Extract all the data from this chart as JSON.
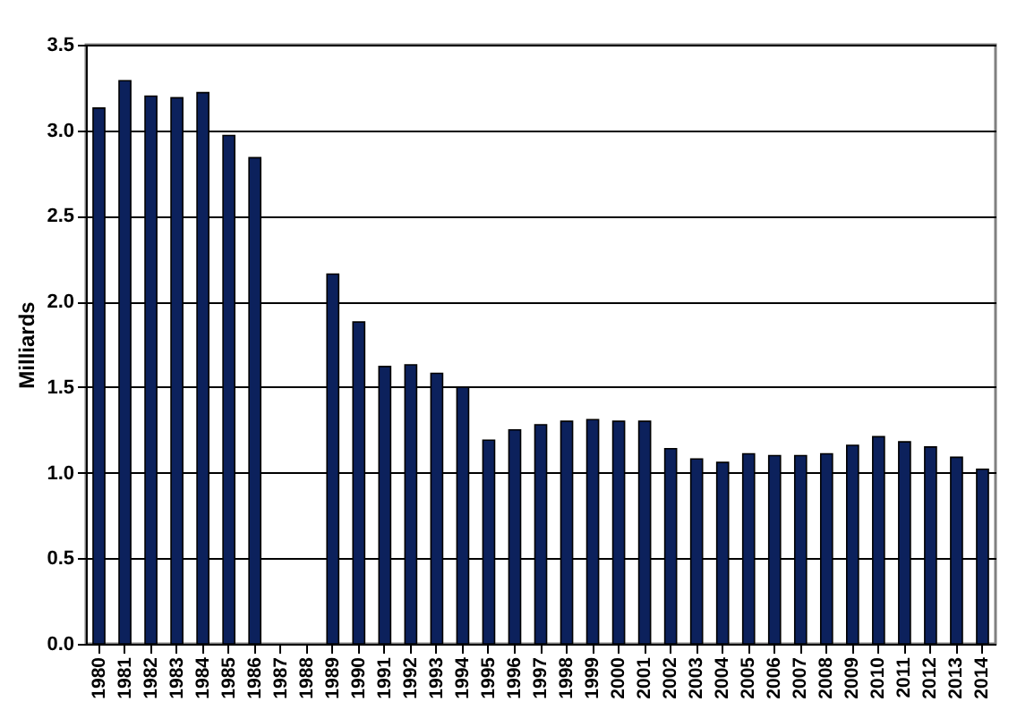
{
  "chart_data": {
    "type": "bar",
    "ylabel": "Milliards",
    "categories": [
      "1980",
      "1981",
      "1982",
      "1983",
      "1984",
      "1985",
      "1986",
      "1987",
      "1988",
      "1989",
      "1990",
      "1991",
      "1992",
      "1993",
      "1994",
      "1995",
      "1996",
      "1997",
      "1998",
      "1999",
      "2000",
      "2001",
      "2002",
      "2003",
      "2004",
      "2005",
      "2006",
      "2007",
      "2008",
      "2009",
      "2010",
      "2011",
      "2012",
      "2013",
      "2014"
    ],
    "values": [
      3.13,
      3.29,
      3.2,
      3.19,
      3.22,
      2.97,
      2.84,
      null,
      null,
      2.16,
      1.88,
      1.62,
      1.63,
      1.58,
      1.5,
      1.19,
      1.25,
      1.28,
      1.3,
      1.31,
      1.3,
      1.3,
      1.14,
      1.08,
      1.06,
      1.11,
      1.1,
      1.1,
      1.11,
      1.16,
      1.21,
      1.18,
      1.15,
      1.09,
      1.02
    ],
    "color": "#0c215c",
    "ylim": [
      0,
      3.5
    ],
    "yticks": [
      {
        "value": 0,
        "label": "0.0"
      },
      0.5,
      {
        "value": 1,
        "label": "1.0"
      },
      1.5,
      {
        "value": 2,
        "label": "2.0"
      },
      2.5,
      {
        "value": 3,
        "label": "3.0"
      },
      3.5
    ],
    "grid": "y"
  }
}
